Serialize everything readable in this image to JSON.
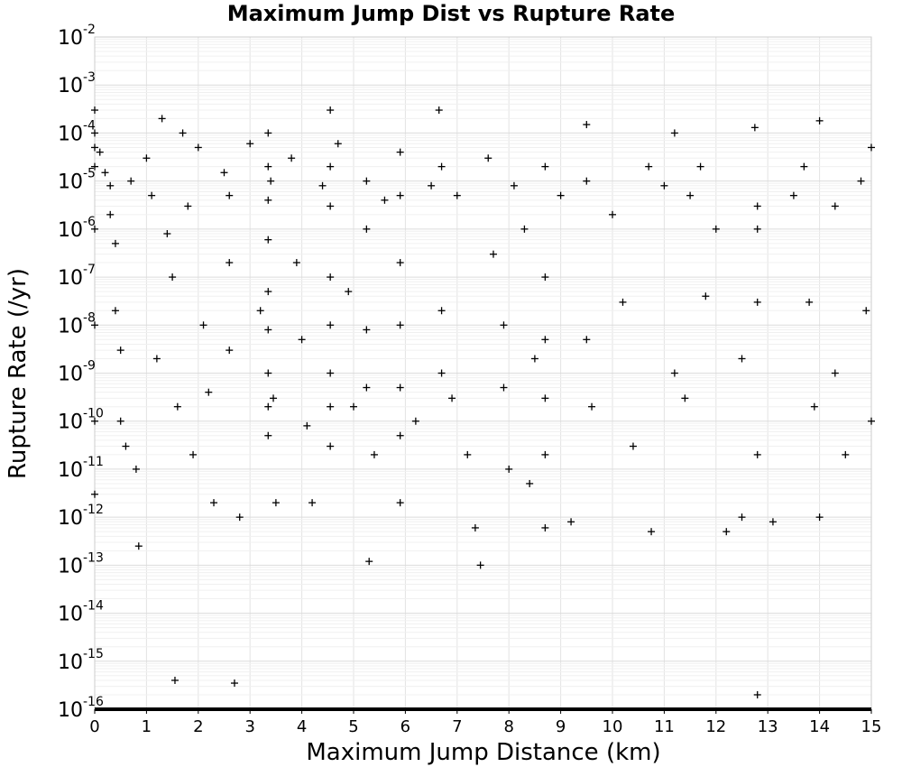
{
  "chart_data": {
    "type": "scatter",
    "title": "Maximum Jump Dist vs Rupture Rate",
    "xlabel": "Maximum Jump Distance (km)",
    "ylabel": "Rupture Rate (/yr)",
    "xlim": [
      0,
      15
    ],
    "ylim": [
      1e-16,
      0.01
    ],
    "yscale": "log",
    "grid": true,
    "marker": "plus",
    "marker_color": "#000000",
    "xticks": [
      "0",
      "1",
      "2",
      "3",
      "4",
      "5",
      "6",
      "7",
      "8",
      "9",
      "10",
      "11",
      "12",
      "13",
      "14",
      "15"
    ],
    "yticks": [
      {
        "base": "10",
        "exp": "-2"
      },
      {
        "base": "10",
        "exp": "-3"
      },
      {
        "base": "10",
        "exp": "-4"
      },
      {
        "base": "10",
        "exp": "-5"
      },
      {
        "base": "10",
        "exp": "-6"
      },
      {
        "base": "10",
        "exp": "-7"
      },
      {
        "base": "10",
        "exp": "-8"
      },
      {
        "base": "10",
        "exp": "-9"
      },
      {
        "base": "10",
        "exp": "-10"
      },
      {
        "base": "10",
        "exp": "-11"
      },
      {
        "base": "10",
        "exp": "-12"
      },
      {
        "base": "10",
        "exp": "-13"
      },
      {
        "base": "10",
        "exp": "-14"
      },
      {
        "base": "10",
        "exp": "-15"
      },
      {
        "base": "10",
        "exp": "-16"
      }
    ],
    "points": [
      {
        "x": 0.0,
        "y": 0.0003
      },
      {
        "x": 0.0,
        "y": 0.0001
      },
      {
        "x": 0.0,
        "y": 5e-05
      },
      {
        "x": 0.0,
        "y": 2e-05
      },
      {
        "x": 0.0,
        "y": 1e-06
      },
      {
        "x": 0.0,
        "y": 1e-08
      },
      {
        "x": 0.0,
        "y": 1e-10
      },
      {
        "x": 0.0,
        "y": 3e-12
      },
      {
        "x": 0.1,
        "y": 4e-05
      },
      {
        "x": 0.2,
        "y": 1.5e-05
      },
      {
        "x": 0.3,
        "y": 8e-06
      },
      {
        "x": 0.3,
        "y": 2e-06
      },
      {
        "x": 0.4,
        "y": 5e-07
      },
      {
        "x": 0.4,
        "y": 2e-08
      },
      {
        "x": 0.5,
        "y": 3e-09
      },
      {
        "x": 0.5,
        "y": 1e-10
      },
      {
        "x": 0.6,
        "y": 3e-11
      },
      {
        "x": 0.7,
        "y": 1e-05
      },
      {
        "x": 0.8,
        "y": 1e-11
      },
      {
        "x": 0.85,
        "y": 2.5e-13
      },
      {
        "x": 1.0,
        "y": 3e-05
      },
      {
        "x": 1.1,
        "y": 5e-06
      },
      {
        "x": 1.2,
        "y": 2e-09
      },
      {
        "x": 1.3,
        "y": 0.0002
      },
      {
        "x": 1.4,
        "y": 8e-07
      },
      {
        "x": 1.5,
        "y": 1e-07
      },
      {
        "x": 1.55,
        "y": 4e-16
      },
      {
        "x": 1.6,
        "y": 2e-10
      },
      {
        "x": 1.7,
        "y": 0.0001
      },
      {
        "x": 1.8,
        "y": 3e-06
      },
      {
        "x": 1.9,
        "y": 2e-11
      },
      {
        "x": 2.0,
        "y": 5e-05
      },
      {
        "x": 2.1,
        "y": 1e-08
      },
      {
        "x": 2.2,
        "y": 4e-10
      },
      {
        "x": 2.3,
        "y": 2e-12
      },
      {
        "x": 2.5,
        "y": 1.5e-05
      },
      {
        "x": 2.6,
        "y": 5e-06
      },
      {
        "x": 2.6,
        "y": 2e-07
      },
      {
        "x": 2.6,
        "y": 3e-09
      },
      {
        "x": 2.7,
        "y": 3.5e-16
      },
      {
        "x": 2.8,
        "y": 1e-12
      },
      {
        "x": 3.0,
        "y": 6e-05
      },
      {
        "x": 3.2,
        "y": 2e-08
      },
      {
        "x": 3.35,
        "y": 0.0001
      },
      {
        "x": 3.35,
        "y": 2e-05
      },
      {
        "x": 3.35,
        "y": 4e-06
      },
      {
        "x": 3.35,
        "y": 6e-07
      },
      {
        "x": 3.35,
        "y": 5e-08
      },
      {
        "x": 3.35,
        "y": 8e-09
      },
      {
        "x": 3.35,
        "y": 1e-09
      },
      {
        "x": 3.35,
        "y": 2e-10
      },
      {
        "x": 3.35,
        "y": 5e-11
      },
      {
        "x": 3.4,
        "y": 1e-05
      },
      {
        "x": 3.45,
        "y": 3e-10
      },
      {
        "x": 3.5,
        "y": 2e-12
      },
      {
        "x": 3.8,
        "y": 3e-05
      },
      {
        "x": 3.9,
        "y": 2e-07
      },
      {
        "x": 4.0,
        "y": 5e-09
      },
      {
        "x": 4.1,
        "y": 8e-11
      },
      {
        "x": 4.2,
        "y": 2e-12
      },
      {
        "x": 4.4,
        "y": 8e-06
      },
      {
        "x": 4.55,
        "y": 0.0003
      },
      {
        "x": 4.55,
        "y": 2e-05
      },
      {
        "x": 4.55,
        "y": 3e-06
      },
      {
        "x": 4.55,
        "y": 1e-07
      },
      {
        "x": 4.55,
        "y": 1e-08
      },
      {
        "x": 4.55,
        "y": 1e-09
      },
      {
        "x": 4.55,
        "y": 2e-10
      },
      {
        "x": 4.55,
        "y": 3e-11
      },
      {
        "x": 4.7,
        "y": 6e-05
      },
      {
        "x": 4.9,
        "y": 5e-08
      },
      {
        "x": 5.0,
        "y": 2e-10
      },
      {
        "x": 5.25,
        "y": 1e-05
      },
      {
        "x": 5.25,
        "y": 1e-06
      },
      {
        "x": 5.25,
        "y": 8e-09
      },
      {
        "x": 5.25,
        "y": 5e-10
      },
      {
        "x": 5.3,
        "y": 1.2e-13
      },
      {
        "x": 5.4,
        "y": 2e-11
      },
      {
        "x": 5.6,
        "y": 4e-06
      },
      {
        "x": 5.9,
        "y": 4e-05
      },
      {
        "x": 5.9,
        "y": 5e-06
      },
      {
        "x": 5.9,
        "y": 2e-07
      },
      {
        "x": 5.9,
        "y": 1e-08
      },
      {
        "x": 5.9,
        "y": 5e-10
      },
      {
        "x": 5.9,
        "y": 5e-11
      },
      {
        "x": 5.9,
        "y": 2e-12
      },
      {
        "x": 6.2,
        "y": 1e-10
      },
      {
        "x": 6.5,
        "y": 8e-06
      },
      {
        "x": 6.65,
        "y": 0.0003
      },
      {
        "x": 6.7,
        "y": 2e-05
      },
      {
        "x": 6.7,
        "y": 2e-08
      },
      {
        "x": 6.7,
        "y": 1e-09
      },
      {
        "x": 6.9,
        "y": 3e-10
      },
      {
        "x": 7.0,
        "y": 5e-06
      },
      {
        "x": 7.2,
        "y": 2e-11
      },
      {
        "x": 7.35,
        "y": 6e-13
      },
      {
        "x": 7.45,
        "y": 1e-13
      },
      {
        "x": 7.6,
        "y": 3e-05
      },
      {
        "x": 7.7,
        "y": 3e-07
      },
      {
        "x": 7.9,
        "y": 1e-08
      },
      {
        "x": 7.9,
        "y": 5e-10
      },
      {
        "x": 8.0,
        "y": 1e-11
      },
      {
        "x": 8.1,
        "y": 8e-06
      },
      {
        "x": 8.3,
        "y": 1e-06
      },
      {
        "x": 8.4,
        "y": 5e-12
      },
      {
        "x": 8.5,
        "y": 2e-09
      },
      {
        "x": 8.7,
        "y": 2e-05
      },
      {
        "x": 8.7,
        "y": 1e-07
      },
      {
        "x": 8.7,
        "y": 5e-09
      },
      {
        "x": 8.7,
        "y": 3e-10
      },
      {
        "x": 8.7,
        "y": 2e-11
      },
      {
        "x": 8.7,
        "y": 6e-13
      },
      {
        "x": 9.0,
        "y": 5e-06
      },
      {
        "x": 9.2,
        "y": 8e-13
      },
      {
        "x": 9.5,
        "y": 0.00015
      },
      {
        "x": 9.5,
        "y": 1e-05
      },
      {
        "x": 9.5,
        "y": 5e-09
      },
      {
        "x": 9.6,
        "y": 2e-10
      },
      {
        "x": 10.0,
        "y": 2e-06
      },
      {
        "x": 10.2,
        "y": 3e-08
      },
      {
        "x": 10.4,
        "y": 3e-11
      },
      {
        "x": 10.7,
        "y": 2e-05
      },
      {
        "x": 10.75,
        "y": 5e-13
      },
      {
        "x": 11.0,
        "y": 8e-06
      },
      {
        "x": 11.2,
        "y": 0.0001
      },
      {
        "x": 11.2,
        "y": 1e-09
      },
      {
        "x": 11.4,
        "y": 3e-10
      },
      {
        "x": 11.5,
        "y": 5e-06
      },
      {
        "x": 11.7,
        "y": 2e-05
      },
      {
        "x": 11.8,
        "y": 4e-08
      },
      {
        "x": 12.0,
        "y": 1e-06
      },
      {
        "x": 12.2,
        "y": 5e-13
      },
      {
        "x": 12.5,
        "y": 2e-09
      },
      {
        "x": 12.5,
        "y": 1e-12
      },
      {
        "x": 12.75,
        "y": 0.00013
      },
      {
        "x": 12.8,
        "y": 3e-06
      },
      {
        "x": 12.8,
        "y": 1e-06
      },
      {
        "x": 12.8,
        "y": 3e-08
      },
      {
        "x": 12.8,
        "y": 2e-11
      },
      {
        "x": 12.8,
        "y": 2e-16
      },
      {
        "x": 13.1,
        "y": 8e-13
      },
      {
        "x": 13.5,
        "y": 5e-06
      },
      {
        "x": 13.7,
        "y": 2e-05
      },
      {
        "x": 13.8,
        "y": 3e-08
      },
      {
        "x": 13.9,
        "y": 2e-10
      },
      {
        "x": 14.0,
        "y": 0.00018
      },
      {
        "x": 14.0,
        "y": 1e-12
      },
      {
        "x": 14.3,
        "y": 3e-06
      },
      {
        "x": 14.3,
        "y": 1e-09
      },
      {
        "x": 14.5,
        "y": 2e-11
      },
      {
        "x": 14.8,
        "y": 1e-05
      },
      {
        "x": 14.9,
        "y": 2e-08
      },
      {
        "x": 15.0,
        "y": 1e-10
      },
      {
        "x": 15.0,
        "y": 5e-05
      }
    ]
  }
}
